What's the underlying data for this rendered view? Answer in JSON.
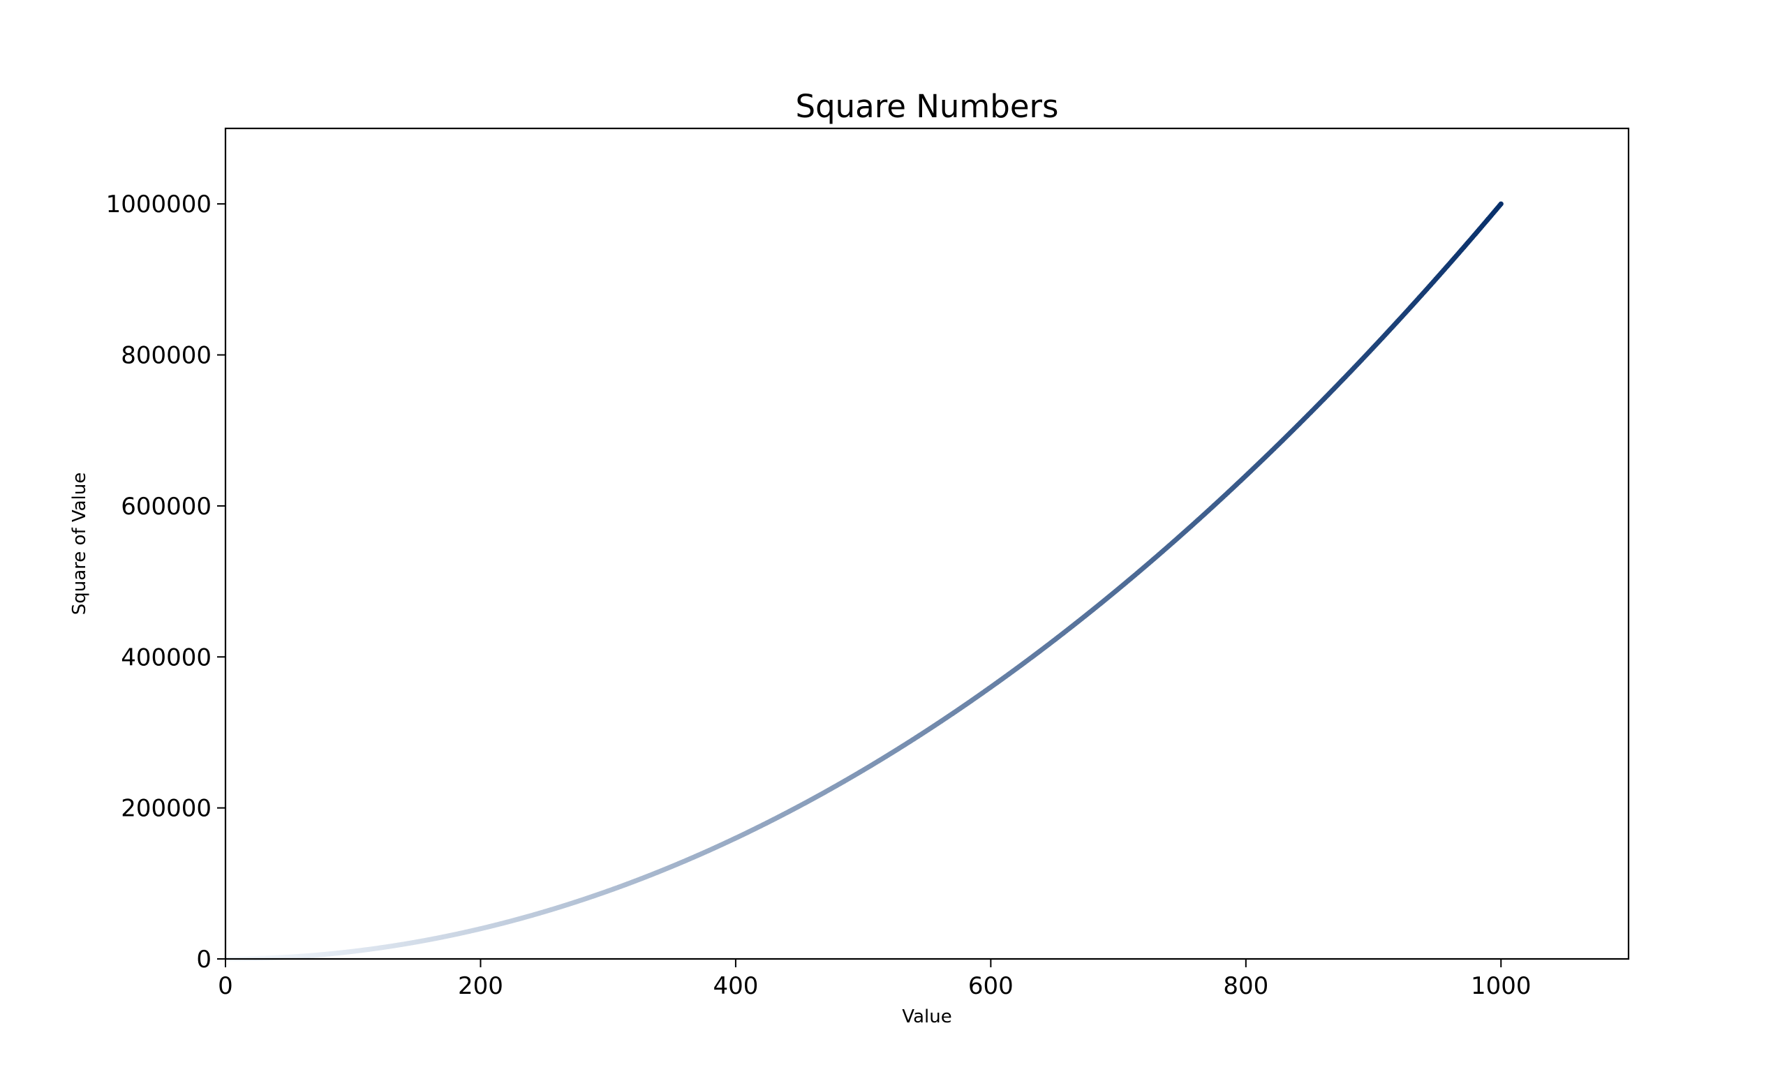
{
  "chart_data": {
    "type": "scatter",
    "title": "Square Numbers",
    "xlabel": "Value",
    "ylabel": "Square of Value",
    "xlim": [
      0,
      1100
    ],
    "ylim": [
      0,
      1100000
    ],
    "x_ticks": [
      0,
      200,
      400,
      600,
      800,
      1000
    ],
    "x_tick_labels": [
      "0",
      "200",
      "400",
      "600",
      "800",
      "1000"
    ],
    "y_ticks": [
      0,
      200000,
      400000,
      600000,
      800000,
      1000000
    ],
    "y_tick_labels": [
      "0",
      "200000",
      "400000",
      "600000",
      "800000",
      "1000000"
    ],
    "grid": false,
    "series": [
      {
        "function": "y = x^2",
        "x_range": [
          1,
          1000
        ],
        "colormap": "Blues",
        "color_low": "#f7fbff",
        "color_high": "#08306b"
      }
    ]
  }
}
